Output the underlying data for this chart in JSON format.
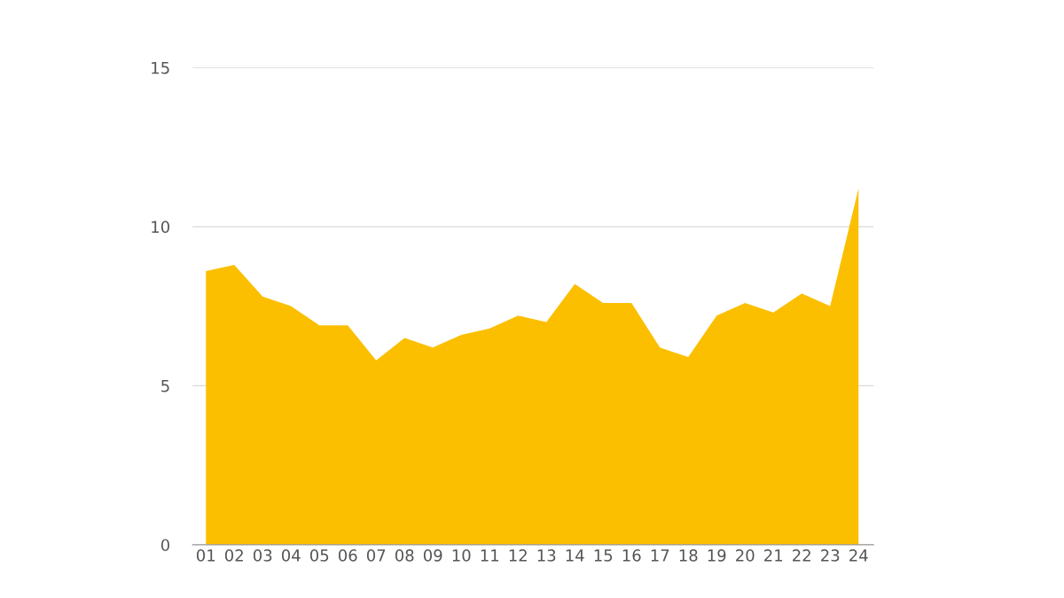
{
  "chart_data": {
    "type": "area",
    "categories": [
      "01",
      "02",
      "03",
      "04",
      "05",
      "06",
      "07",
      "08",
      "09",
      "10",
      "11",
      "12",
      "13",
      "14",
      "15",
      "16",
      "17",
      "18",
      "19",
      "20",
      "21",
      "22",
      "23",
      "24"
    ],
    "series": [
      {
        "color": "#fbbf00",
        "values": [
          8.6,
          8.8,
          7.8,
          7.5,
          6.9,
          6.9,
          5.8,
          6.5,
          6.2,
          6.6,
          6.8,
          7.2,
          7.0,
          8.2,
          7.6,
          7.6,
          6.2,
          5.9,
          7.2,
          7.6,
          7.3,
          7.9,
          7.5,
          11.2
        ]
      }
    ],
    "ylim": [
      0,
      15
    ],
    "yticks": [
      0,
      5,
      10,
      15
    ],
    "grid": "y",
    "legend": false
  }
}
